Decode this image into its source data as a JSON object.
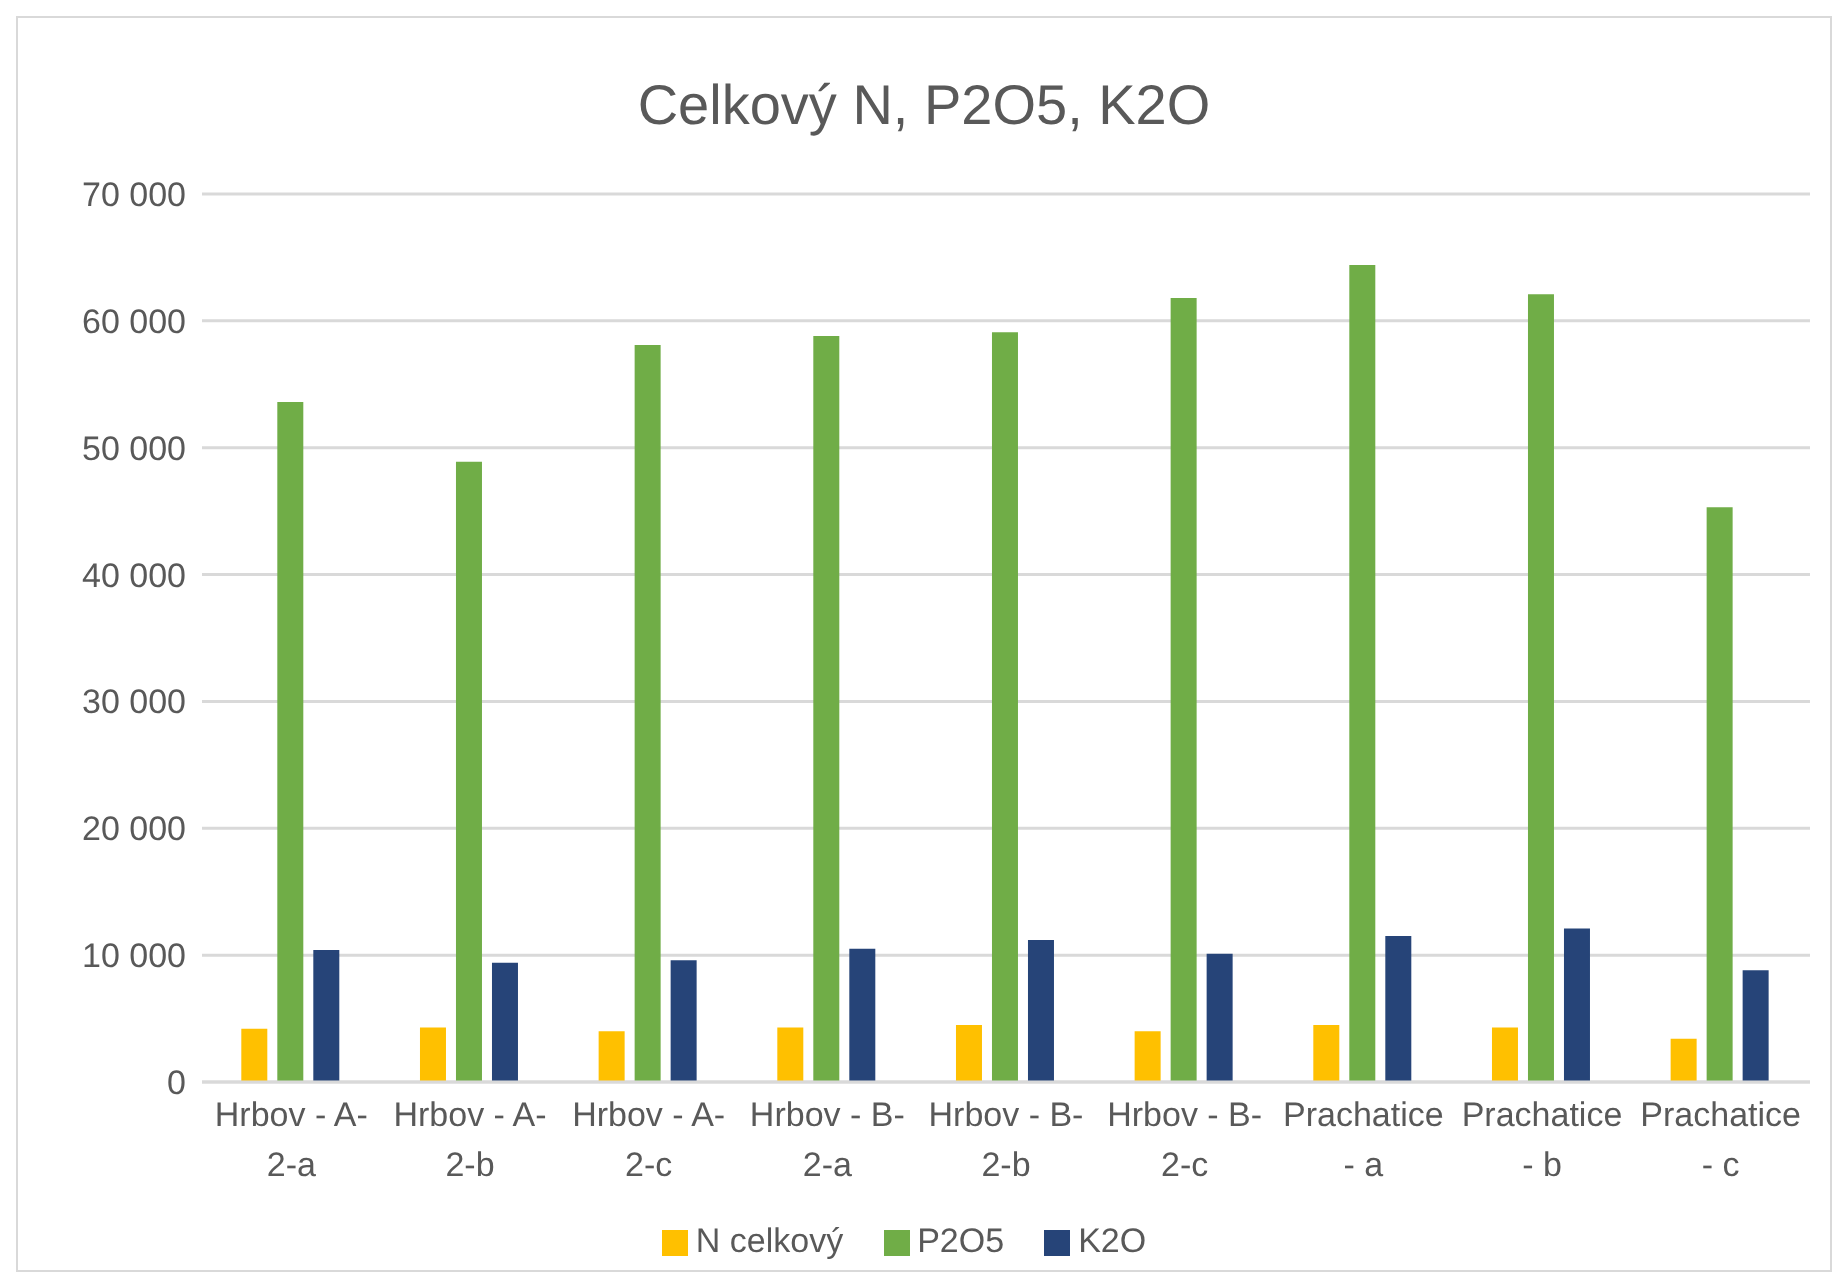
{
  "chart_data": {
    "type": "bar",
    "title": "Celkový N, P2O5, K2O",
    "categories": [
      "Hrbov - A-2-a",
      "Hrbov - A-2-b",
      "Hrbov - A-2-c",
      "Hrbov - B-2-a",
      "Hrbov - B-2-b",
      "Hrbov - B-2-c",
      "Prachatice - a",
      "Prachatice - b",
      "Prachatice - c"
    ],
    "series": [
      {
        "name": "N celkový",
        "color": "#ffc000",
        "values": [
          4200,
          4300,
          4000,
          4300,
          4500,
          4000,
          4500,
          4300,
          3400
        ]
      },
      {
        "name": "P2O5",
        "color": "#70ad47",
        "values": [
          53600,
          48900,
          58100,
          58800,
          59100,
          61800,
          64400,
          62100,
          45300
        ]
      },
      {
        "name": "K2O",
        "color": "#264478",
        "values": [
          10400,
          9400,
          9600,
          10500,
          11200,
          10100,
          11500,
          12100,
          8800
        ]
      }
    ],
    "ylim": [
      0,
      70000
    ],
    "yticks": [
      0,
      {
        "value": 10000,
        "label": "10 000"
      },
      {
        "value": 20000,
        "label": "20 000"
      },
      {
        "value": 30000,
        "label": "30 000"
      },
      {
        "value": 40000,
        "label": "40 000"
      },
      {
        "value": 50000,
        "label": "50 000"
      },
      {
        "value": 60000,
        "label": "60 000"
      },
      {
        "value": 70000,
        "label": "70 000"
      }
    ],
    "grid": "y",
    "legend": "bottom"
  }
}
